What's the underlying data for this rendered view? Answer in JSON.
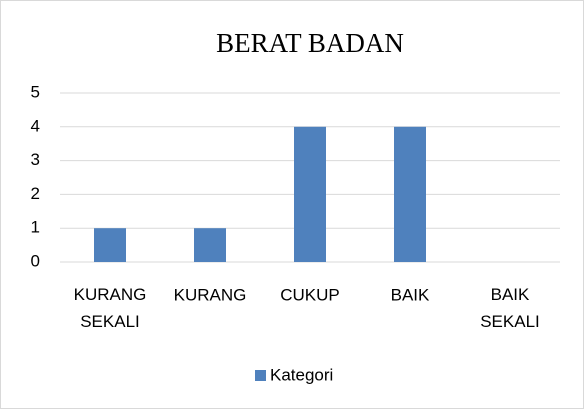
{
  "chart_data": {
    "type": "bar",
    "title": "BERAT BADAN",
    "categories": [
      "KURANG SEKALI",
      "KURANG",
      "CUKUP",
      "BAIK",
      "BAIK SEKALI"
    ],
    "series": [
      {
        "name": "Kategori",
        "color": "#4f81bd",
        "values": [
          1,
          1,
          4,
          4,
          0
        ]
      }
    ],
    "ylim": [
      0,
      5
    ],
    "yticks": [
      0,
      1,
      2,
      3,
      4,
      5
    ],
    "grid": true,
    "legend": "bottom"
  }
}
